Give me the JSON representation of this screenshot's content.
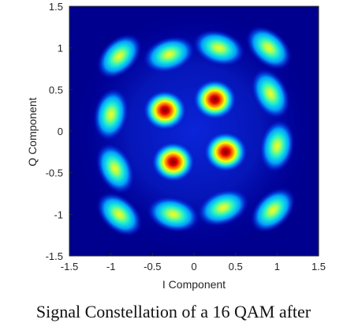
{
  "chart_data": {
    "type": "heatmap",
    "title": "",
    "xlabel": "I Component",
    "ylabel": "Q Component",
    "xlim": [
      -1.5,
      1.5
    ],
    "ylim": [
      -1.5,
      1.5
    ],
    "xticks": [
      "-1.5",
      "-1",
      "-0.5",
      "0",
      "0.5",
      "1",
      "1.5"
    ],
    "yticks": [
      "1.5",
      "1",
      "0.5",
      "0",
      "-0.5",
      "-1",
      "-1.5"
    ],
    "colormap": "jet",
    "background_color": "#00008f",
    "clusters": [
      {
        "i": -0.35,
        "q": 0.25,
        "intensity": 1.0
      },
      {
        "i": 0.25,
        "q": 0.38,
        "intensity": 1.0
      },
      {
        "i": -0.25,
        "q": -0.37,
        "intensity": 1.0
      },
      {
        "i": 0.38,
        "q": -0.25,
        "intensity": 1.0
      },
      {
        "i": -0.9,
        "q": 0.9,
        "intensity": 0.55
      },
      {
        "i": -0.3,
        "q": 0.92,
        "intensity": 0.55
      },
      {
        "i": 0.3,
        "q": 1.0,
        "intensity": 0.55
      },
      {
        "i": 0.9,
        "q": 1.0,
        "intensity": 0.55
      },
      {
        "i": -1.0,
        "q": 0.2,
        "intensity": 0.55
      },
      {
        "i": 0.92,
        "q": 0.45,
        "intensity": 0.55
      },
      {
        "i": -0.95,
        "q": -0.45,
        "intensity": 0.55
      },
      {
        "i": 1.0,
        "q": -0.18,
        "intensity": 0.55
      },
      {
        "i": -0.9,
        "q": -1.0,
        "intensity": 0.55
      },
      {
        "i": -0.25,
        "q": -1.0,
        "intensity": 0.55
      },
      {
        "i": 0.35,
        "q": -0.92,
        "intensity": 0.55
      },
      {
        "i": 0.95,
        "q": -0.95,
        "intensity": 0.55
      }
    ]
  },
  "caption": "Signal Constellation of a 16 QAM after"
}
